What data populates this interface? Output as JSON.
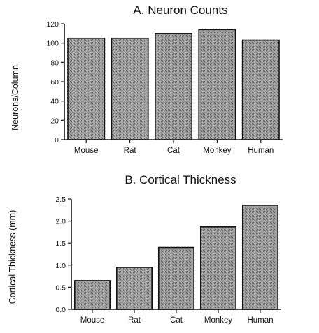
{
  "chart_data": [
    {
      "type": "bar",
      "title": "A.  Neuron Counts",
      "xlabel": "",
      "ylabel": "Neurons/Column",
      "categories": [
        "Mouse",
        "Rat",
        "Cat",
        "Monkey",
        "Human"
      ],
      "values": [
        105,
        105,
        110,
        114,
        103
      ],
      "ylim": [
        0,
        120
      ],
      "yticks": [
        0,
        20,
        40,
        60,
        80,
        100,
        120
      ],
      "ytick_labels": [
        "0",
        "20",
        "40",
        "60",
        "80",
        "100",
        "120"
      ],
      "grid": false,
      "bar_color": "#8a8a8a"
    },
    {
      "type": "bar",
      "title": "B.  Cortical Thickness",
      "xlabel": "",
      "ylabel": "Cortical  Thickness  (mm)",
      "categories": [
        "Mouse",
        "Rat",
        "Cat",
        "Monkey",
        "Human"
      ],
      "values": [
        0.65,
        0.95,
        1.4,
        1.87,
        2.36
      ],
      "ylim": [
        0,
        2.5
      ],
      "yticks": [
        0,
        0.5,
        1.0,
        1.5,
        2.0,
        2.5
      ],
      "ytick_labels": [
        "0.0",
        "0.5",
        "1.0",
        "1.5",
        "2.0",
        "2.5"
      ],
      "grid": false,
      "bar_color": "#8a8a8a"
    }
  ]
}
